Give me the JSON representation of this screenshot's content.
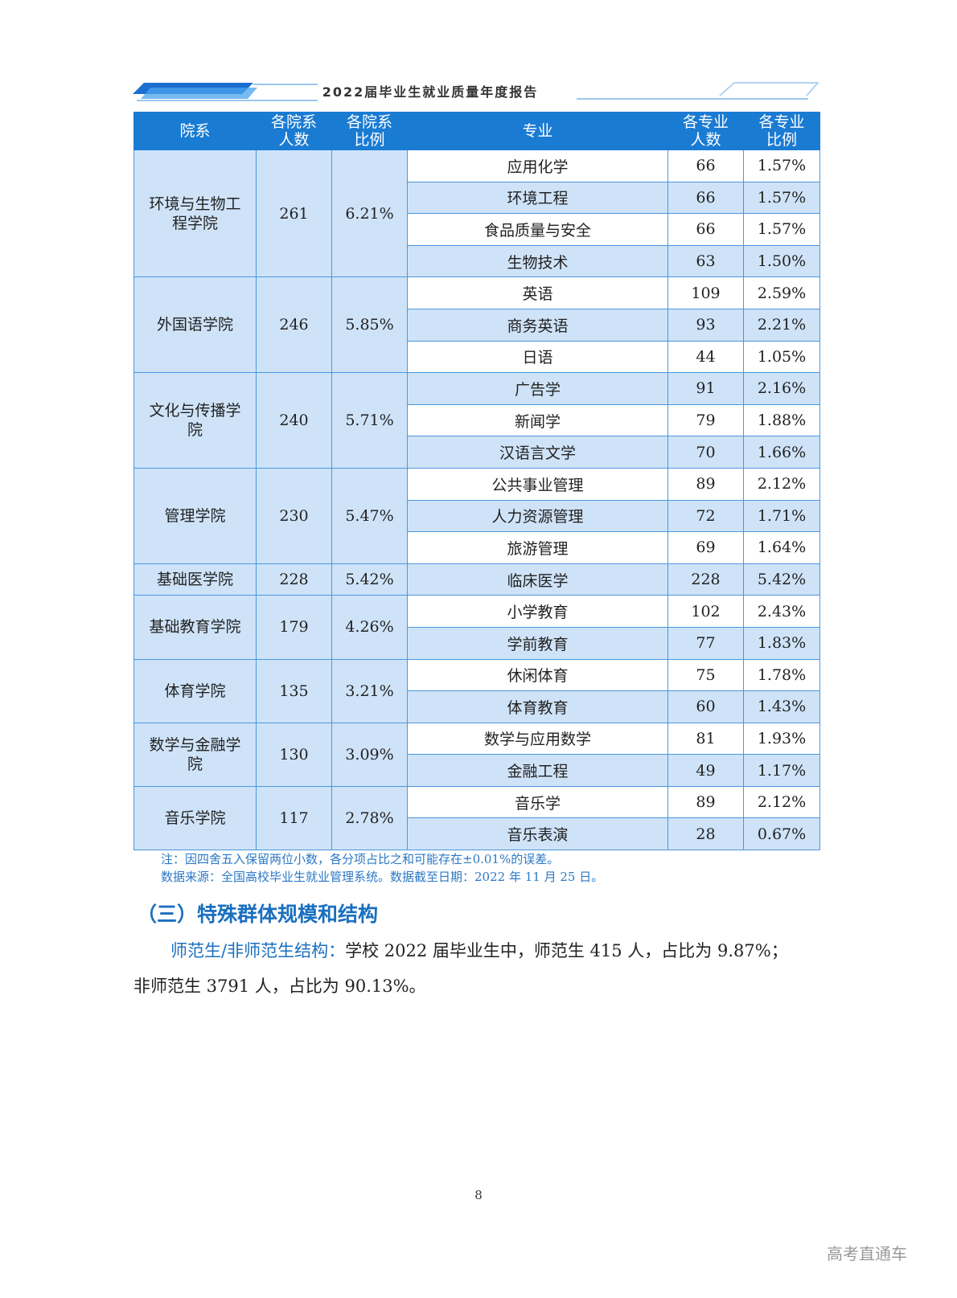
{
  "header": {
    "title": "2022届毕业生就业质量年度报告"
  },
  "table": {
    "columns": [
      "院系",
      "各院系\n人数",
      "各院系\n比例",
      "专业",
      "各专业\n人数",
      "各专业\n比例"
    ],
    "groups": [
      {
        "college": "环境与生物工程学院",
        "count": "261",
        "ratio": "6.21%",
        "majors": [
          {
            "name": "应用化学",
            "count": "66",
            "ratio": "1.57%"
          },
          {
            "name": "环境工程",
            "count": "66",
            "ratio": "1.57%"
          },
          {
            "name": "食品质量与安全",
            "count": "66",
            "ratio": "1.57%"
          },
          {
            "name": "生物技术",
            "count": "63",
            "ratio": "1.50%"
          }
        ]
      },
      {
        "college": "外国语学院",
        "count": "246",
        "ratio": "5.85%",
        "majors": [
          {
            "name": "英语",
            "count": "109",
            "ratio": "2.59%"
          },
          {
            "name": "商务英语",
            "count": "93",
            "ratio": "2.21%"
          },
          {
            "name": "日语",
            "count": "44",
            "ratio": "1.05%"
          }
        ]
      },
      {
        "college": "文化与传播学院",
        "count": "240",
        "ratio": "5.71%",
        "majors": [
          {
            "name": "广告学",
            "count": "91",
            "ratio": "2.16%"
          },
          {
            "name": "新闻学",
            "count": "79",
            "ratio": "1.88%"
          },
          {
            "name": "汉语言文学",
            "count": "70",
            "ratio": "1.66%"
          }
        ]
      },
      {
        "college": "管理学院",
        "count": "230",
        "ratio": "5.47%",
        "majors": [
          {
            "name": "公共事业管理",
            "count": "89",
            "ratio": "2.12%"
          },
          {
            "name": "人力资源管理",
            "count": "72",
            "ratio": "1.71%"
          },
          {
            "name": "旅游管理",
            "count": "69",
            "ratio": "1.64%"
          }
        ]
      },
      {
        "college": "基础医学院",
        "count": "228",
        "ratio": "5.42%",
        "majors": [
          {
            "name": "临床医学",
            "count": "228",
            "ratio": "5.42%"
          }
        ]
      },
      {
        "college": "基础教育学院",
        "count": "179",
        "ratio": "4.26%",
        "majors": [
          {
            "name": "小学教育",
            "count": "102",
            "ratio": "2.43%"
          },
          {
            "name": "学前教育",
            "count": "77",
            "ratio": "1.83%"
          }
        ]
      },
      {
        "college": "体育学院",
        "count": "135",
        "ratio": "3.21%",
        "majors": [
          {
            "name": "休闲体育",
            "count": "75",
            "ratio": "1.78%"
          },
          {
            "name": "体育教育",
            "count": "60",
            "ratio": "1.43%"
          }
        ]
      },
      {
        "college": "数学与金融学院",
        "count": "130",
        "ratio": "3.09%",
        "majors": [
          {
            "name": "数学与应用数学",
            "count": "81",
            "ratio": "1.93%"
          },
          {
            "name": "金融工程",
            "count": "49",
            "ratio": "1.17%"
          }
        ]
      },
      {
        "college": "音乐学院",
        "count": "117",
        "ratio": "2.78%",
        "majors": [
          {
            "name": "音乐学",
            "count": "89",
            "ratio": "2.12%"
          },
          {
            "name": "音乐表演",
            "count": "28",
            "ratio": "0.67%"
          }
        ]
      }
    ]
  },
  "notes": {
    "note": "注：因四舍五入保留两位小数，各分项占比之和可能存在±0.01%的误差。",
    "source": "数据来源：全国高校毕业生就业管理系统。数据截至日期：2022 年 11 月 25 日。"
  },
  "section": {
    "title": "（三）特殊群体规模和结构",
    "lead": "师范生/非师范生结构：",
    "line1": "学校 2022 届毕业生中，师范生 415 人，占比为 9.87%；",
    "line2": "非师范生 3791 人，占比为 90.13%。"
  },
  "page_number": "8",
  "watermark": "高考直通车",
  "colors": {
    "header_blue": "#1a7bd3",
    "row_light_blue": "#cfe3f8",
    "accent_text": "#1a6fbf"
  }
}
